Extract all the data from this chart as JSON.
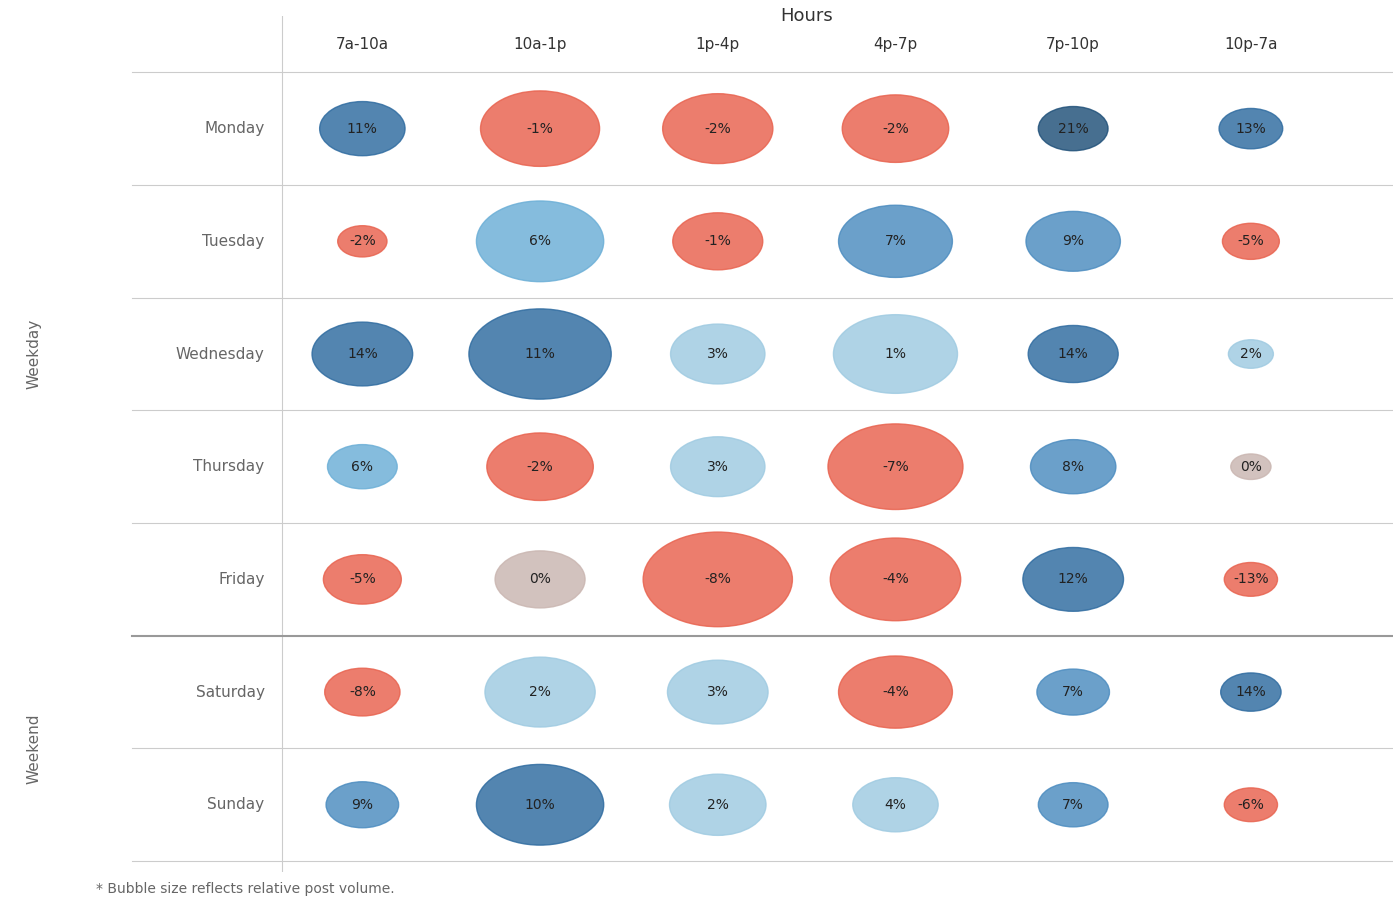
{
  "title": "Hours",
  "footnote": "* Bubble size reflects relative post volume.",
  "hours": [
    "7a-10a",
    "10a-1p",
    "1p-4p",
    "4p-7p",
    "7p-10p",
    "10p-7a"
  ],
  "days": [
    "Monday",
    "Tuesday",
    "Wednesday",
    "Thursday",
    "Friday",
    "Saturday",
    "Sunday"
  ],
  "row_label_weekday": "Weekday",
  "row_label_weekend": "Weekend",
  "values": [
    [
      11,
      -1,
      -2,
      -2,
      21,
      13
    ],
    [
      -2,
      6,
      -1,
      7,
      9,
      -5
    ],
    [
      14,
      11,
      3,
      1,
      14,
      2
    ],
    [
      6,
      -2,
      3,
      -7,
      8,
      0
    ],
    [
      -5,
      0,
      -8,
      -4,
      12,
      -13
    ],
    [
      -8,
      2,
      3,
      -4,
      7,
      14
    ],
    [
      9,
      10,
      2,
      4,
      7,
      -6
    ]
  ],
  "bubble_sizes": [
    [
      1800,
      3500,
      3000,
      2800,
      1200,
      1000
    ],
    [
      600,
      4000,
      2000,
      3200,
      2200,
      800
    ],
    [
      2500,
      5000,
      2200,
      3800,
      2000,
      500
    ],
    [
      1200,
      2800,
      2200,
      4500,
      1800,
      400
    ],
    [
      1500,
      2000,
      5500,
      4200,
      2500,
      700
    ],
    [
      1400,
      3000,
      2500,
      3200,
      1300,
      900
    ],
    [
      1300,
      4000,
      2300,
      1800,
      1200,
      700
    ]
  ],
  "color_blue_darkest": "#1e4f78",
  "color_blue_dark": "#2d6a9f",
  "color_blue_mid": "#4a8bbf",
  "color_blue_light": "#6aaed6",
  "color_blue_lighter": "#9ecae1",
  "color_red": "#e8614d",
  "color_beige": "#c9b5b0",
  "color_beige_light": "#d9c8c4",
  "background": "#ffffff",
  "grid_color": "#cccccc",
  "separator_color": "#999999",
  "text_day_color": "#666666",
  "text_val_color": "#222222",
  "text_header_color": "#333333"
}
